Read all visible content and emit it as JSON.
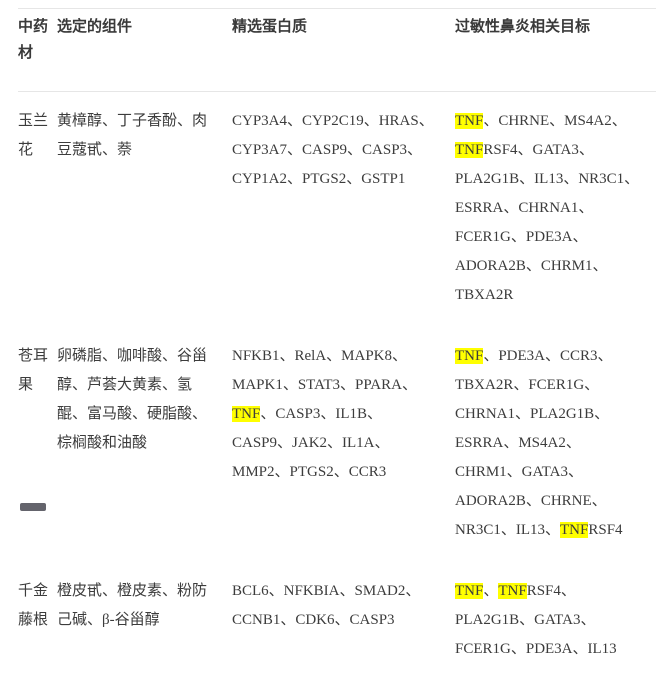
{
  "table": {
    "highlight_term": "TNF",
    "highlight_color": "#ffff00",
    "text_color": "#3c3c3c",
    "border_color": "#e6e6e6",
    "columns": [
      {
        "label": "中药材"
      },
      {
        "label": "选定的组件"
      },
      {
        "label": "精选蛋白质"
      },
      {
        "label": "过敏性鼻炎相关目标"
      }
    ],
    "rows": [
      {
        "herb": "玉兰花",
        "components": "黄樟醇、丁子香酚、肉豆蔻甙、萘",
        "proteins": "CYP3A4、CYP2C19、HRAS、CYP3A7、CASP9、CASP3、CYP1A2、PTGS2、GSTP1",
        "targets": "TNF、CHRNE、MS4A2、TNFRSF4、GATA3、PLA2G1B、IL13、NR3C1、ESRRA、CHRNA1、FCER1G、PDE3A、ADORA2B、CHRM1、TBXA2R"
      },
      {
        "herb": "苍耳果",
        "components": "卵磷脂、咖啡酸、谷甾醇、芦荟大黄素、氢醌、富马酸、硬脂酸、棕榈酸和油酸",
        "proteins": "NFKB1、RelA、MAPK8、MAPK1、STAT3、PPARA、TNF、CASP3、IL1B、CASP9、JAK2、IL1A、MMP2、PTGS2、CCR3",
        "targets": "TNF、PDE3A、CCR3、TBXA2R、FCER1G、CHRNA1、PLA2G1B、ESRRA、MS4A2、CHRM1、GATA3、ADORA2B、CHRNE、NR3C1、IL13、TNFRSF4"
      },
      {
        "herb": "千金藤根",
        "components": "橙皮甙、橙皮素、粉防己碱、β-谷甾醇",
        "proteins": "BCL6、NFKBIA、SMAD2、CCNB1、CDK6、CASP3",
        "targets": "TNF、TNFRSF4、PLA2G1B、GATA3、FCER1G、PDE3A、IL13"
      }
    ]
  }
}
